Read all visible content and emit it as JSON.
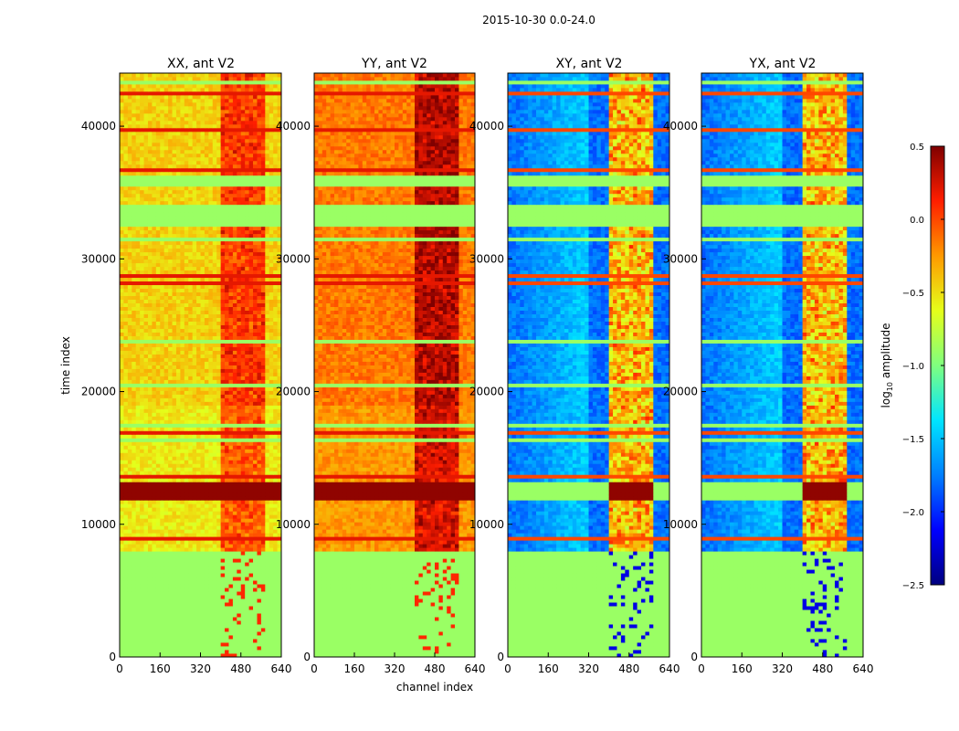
{
  "title": "2015-10-30 0.0-24.0",
  "colors": {
    "jet": [
      "#00007f",
      "#0000ff",
      "#007fff",
      "#00e5ff",
      "#7fff7f",
      "#e5ff1a",
      "#ff9900",
      "#ff1e00",
      "#7f0000"
    ],
    "flagged": "#7fff7f",
    "axes_edge": "#000000"
  },
  "chart_data": {
    "type": "heatmap",
    "xlabel": "channel index",
    "ylabel": "time index",
    "xlim": [
      0,
      640
    ],
    "ylim": [
      0,
      44000
    ],
    "xticks": [
      0,
      160,
      320,
      480,
      640
    ],
    "yticks": [
      0,
      10000,
      20000,
      30000,
      40000
    ],
    "panels": [
      {
        "name": "XX, ant V2",
        "pol": "XX",
        "base": -0.45
      },
      {
        "name": "YY, ant V2",
        "pol": "YY",
        "base": -0.15
      },
      {
        "name": "XY, ant V2",
        "pol": "XY",
        "base": -1.8
      },
      {
        "name": "YX, ant V2",
        "pol": "YX",
        "base": -1.8
      }
    ],
    "flagged_time_ranges": [
      [
        0,
        8000
      ],
      [
        32500,
        34000
      ],
      [
        35500,
        36200
      ]
    ],
    "rfi_channel_range": [
      400,
      580
    ],
    "bright_time_range": [
      11800,
      13200
    ],
    "colorbar": {
      "label": "log10 amplitude",
      "min": -2.5,
      "max": 0.5,
      "ticks": [
        "0.5",
        "0.0",
        "−0.5",
        "−1.0",
        "−1.5",
        "−2.0",
        "−2.5"
      ],
      "tick_values": [
        0.5,
        0.0,
        -0.5,
        -1.0,
        -1.5,
        -2.0,
        -2.5
      ]
    }
  }
}
